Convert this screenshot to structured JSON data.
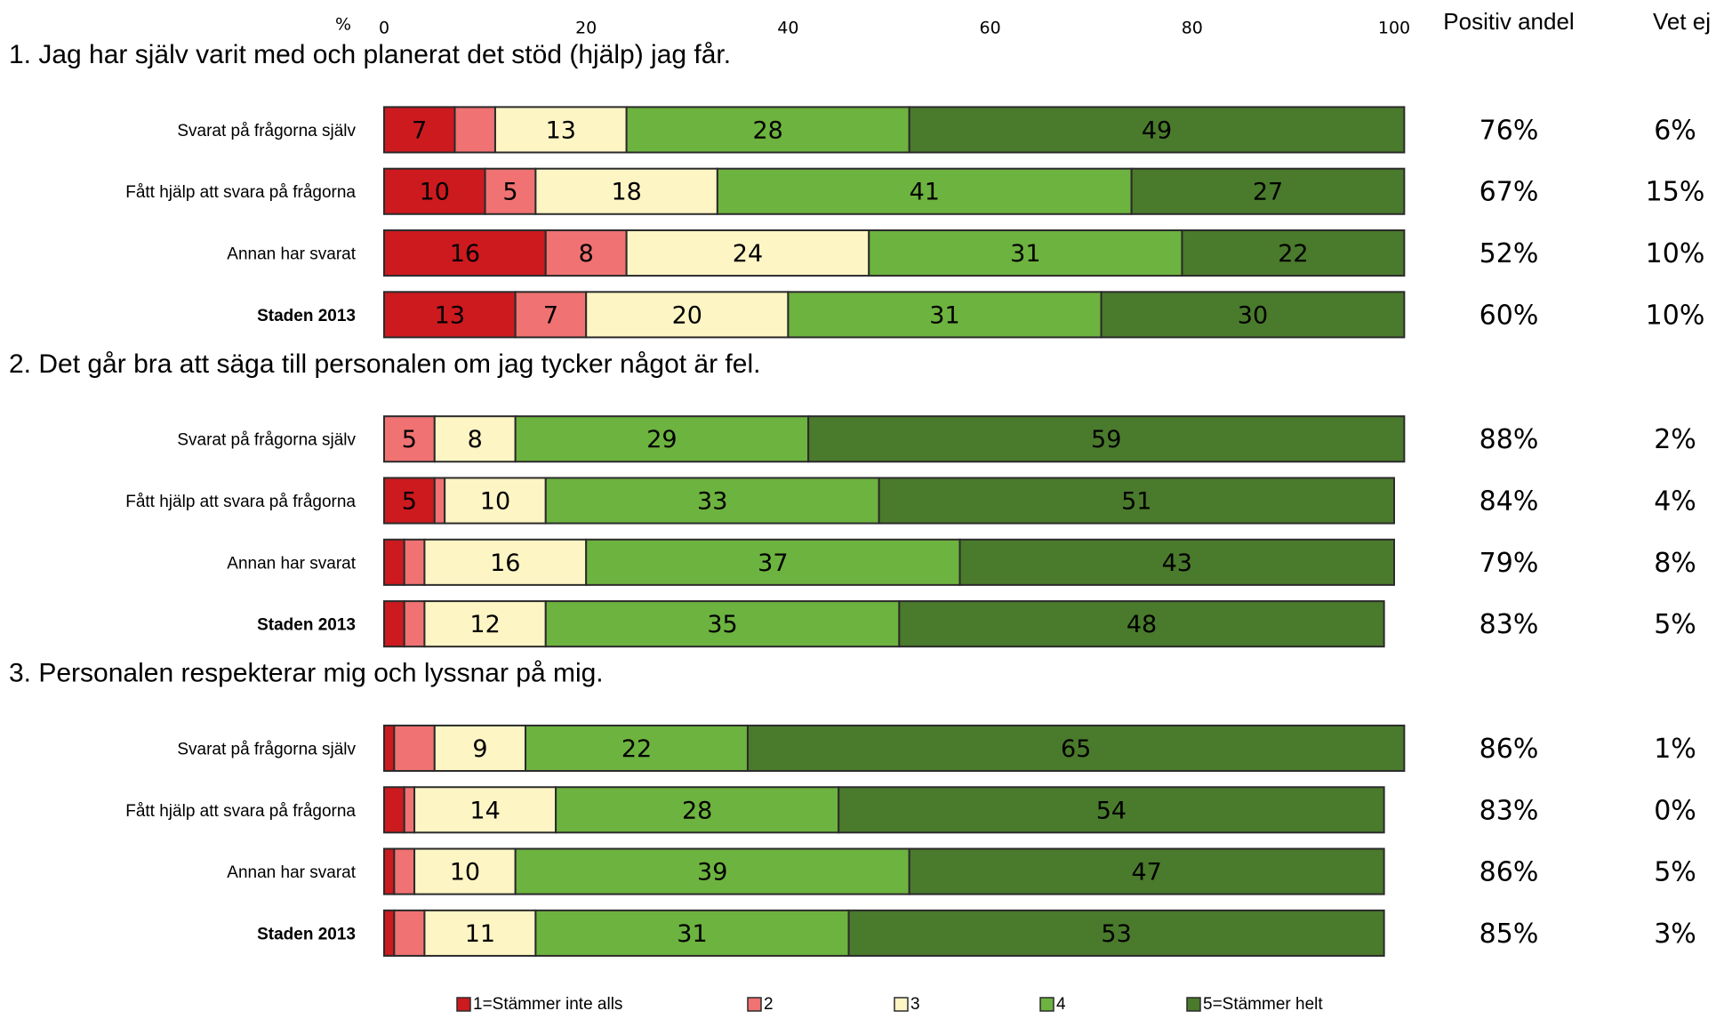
{
  "chart_data": {
    "type": "stacked_bar",
    "axis_label": "%",
    "xlim": [
      0,
      100
    ],
    "xticks": [
      0,
      20,
      40,
      60,
      80,
      100
    ],
    "legend": [
      {
        "name": "1=Stämmer inte alls",
        "color": "#cc1a1f"
      },
      {
        "name": "2",
        "color": "#f07272"
      },
      {
        "name": "3",
        "color": "#fdf5c4"
      },
      {
        "name": "4",
        "color": "#6db33f"
      },
      {
        "name": "5=Stämmer helt",
        "color": "#4a7a2c"
      }
    ],
    "columns": [
      "Positiv andel",
      "Vet ej"
    ],
    "groups": [
      {
        "title": "1. Jag har själv varit med och planerat det stöd (hjälp) jag får.",
        "categories": [
          "Svarat på frågorna själv",
          "Fått hjälp att svara på frågorna",
          "Annan har svarat",
          "Staden 2013"
        ],
        "series": [
          {
            "values": [
              7,
              10,
              16,
              13
            ]
          },
          {
            "values": [
              4,
              5,
              8,
              7
            ]
          },
          {
            "values": [
              13,
              18,
              24,
              20
            ]
          },
          {
            "values": [
              28,
              41,
              31,
              31
            ]
          },
          {
            "values": [
              49,
              27,
              22,
              30
            ]
          }
        ],
        "columns": [
          {
            "values": [
              76,
              67,
              52,
              60
            ],
            "value_labels": [
              "76%",
              "67%",
              "52%",
              "60%"
            ]
          },
          {
            "values": [
              6,
              15,
              10,
              10
            ],
            "value_labels": [
              "6%",
              "15%",
              "10%",
              "10%"
            ]
          }
        ]
      },
      {
        "title": "2. Det går bra att säga till personalen om jag tycker något är fel.",
        "categories": [
          "Svarat på frågorna själv",
          "Fått hjälp att svara på frågorna",
          "Annan har svarat",
          "Staden 2013"
        ],
        "series": [
          {
            "values": [
              0,
              5,
              2,
              2
            ]
          },
          {
            "values": [
              5,
              1,
              2,
              2
            ]
          },
          {
            "values": [
              8,
              10,
              16,
              12
            ]
          },
          {
            "values": [
              29,
              33,
              37,
              35
            ]
          },
          {
            "values": [
              59,
              51,
              43,
              48
            ]
          }
        ],
        "columns": [
          {
            "values": [
              88,
              84,
              79,
              83
            ],
            "value_labels": [
              "88%",
              "84%",
              "79%",
              "83%"
            ]
          },
          {
            "values": [
              2,
              4,
              8,
              5
            ],
            "value_labels": [
              "2%",
              "4%",
              "8%",
              "5%"
            ]
          }
        ]
      },
      {
        "title": "3. Personalen respekterar mig och lyssnar på mig.",
        "categories": [
          "Svarat på frågorna själv",
          "Fått hjälp att svara på frågorna",
          "Annan har svarat",
          "Staden 2013"
        ],
        "series": [
          {
            "values": [
              1,
              2,
              1,
              1
            ]
          },
          {
            "values": [
              4,
              1,
              2,
              3
            ]
          },
          {
            "values": [
              9,
              14,
              10,
              11
            ]
          },
          {
            "values": [
              22,
              28,
              39,
              31
            ]
          },
          {
            "values": [
              65,
              54,
              47,
              53
            ]
          }
        ],
        "columns": [
          {
            "values": [
              86,
              83,
              86,
              85
            ],
            "value_labels": [
              "86%",
              "83%",
              "86%",
              "85%"
            ]
          },
          {
            "values": [
              1,
              0,
              5,
              3
            ],
            "value_labels": [
              "1%",
              "0%",
              "5%",
              "3%"
            ]
          }
        ]
      }
    ]
  }
}
